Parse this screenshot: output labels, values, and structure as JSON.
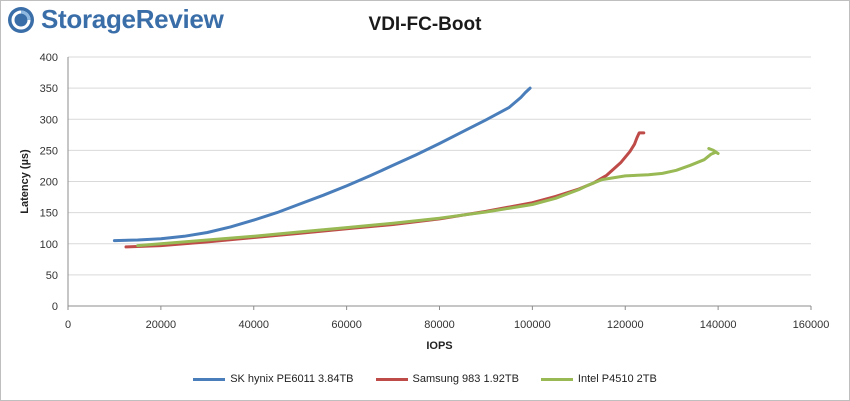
{
  "brand": {
    "name": "StorageReview",
    "color": "#3a6ea8"
  },
  "chart_data": {
    "type": "line",
    "title": "VDI-FC-Boot",
    "xlabel": "IOPS",
    "ylabel": "Latency (µs)",
    "xlim": [
      0,
      160000
    ],
    "ylim": [
      0,
      400
    ],
    "xticks": [
      0,
      20000,
      40000,
      60000,
      80000,
      100000,
      120000,
      140000,
      160000
    ],
    "yticks": [
      0,
      50,
      100,
      150,
      200,
      250,
      300,
      350,
      400
    ],
    "grid": "horizontal",
    "legend": "bottom",
    "series": [
      {
        "name": "SK hynix PE6011 3.84TB",
        "color": "#4a7ebb",
        "points": [
          [
            10000,
            105
          ],
          [
            15000,
            106
          ],
          [
            20000,
            108
          ],
          [
            25000,
            112
          ],
          [
            30000,
            118
          ],
          [
            35000,
            127
          ],
          [
            40000,
            138
          ],
          [
            45000,
            150
          ],
          [
            50000,
            164
          ],
          [
            55000,
            178
          ],
          [
            60000,
            193
          ],
          [
            65000,
            209
          ],
          [
            70000,
            226
          ],
          [
            75000,
            243
          ],
          [
            80000,
            261
          ],
          [
            85000,
            280
          ],
          [
            90000,
            299
          ],
          [
            95000,
            319
          ],
          [
            97500,
            335
          ],
          [
            98500,
            343
          ],
          [
            99500,
            350
          ]
        ]
      },
      {
        "name": "Samsung 983 1.92TB",
        "color": "#be4b48",
        "points": [
          [
            12500,
            95
          ],
          [
            20000,
            97
          ],
          [
            30000,
            103
          ],
          [
            40000,
            110
          ],
          [
            50000,
            117
          ],
          [
            60000,
            124
          ],
          [
            70000,
            131
          ],
          [
            80000,
            140
          ],
          [
            90000,
            152
          ],
          [
            100000,
            166
          ],
          [
            105000,
            176
          ],
          [
            110000,
            188
          ],
          [
            113000,
            197
          ],
          [
            116000,
            210
          ],
          [
            119000,
            230
          ],
          [
            121000,
            248
          ],
          [
            122000,
            260
          ],
          [
            122500,
            270
          ],
          [
            123000,
            278
          ],
          [
            124000,
            278
          ]
        ]
      },
      {
        "name": "Intel P4510 2TB",
        "color": "#98b954",
        "points": [
          [
            15000,
            97
          ],
          [
            20000,
            100
          ],
          [
            30000,
            106
          ],
          [
            40000,
            112
          ],
          [
            50000,
            119
          ],
          [
            60000,
            126
          ],
          [
            70000,
            133
          ],
          [
            80000,
            141
          ],
          [
            90000,
            151
          ],
          [
            100000,
            163
          ],
          [
            105000,
            173
          ],
          [
            110000,
            187
          ],
          [
            112000,
            194
          ],
          [
            115000,
            203
          ],
          [
            120000,
            209
          ],
          [
            125000,
            211
          ],
          [
            128000,
            213
          ],
          [
            131000,
            218
          ],
          [
            134000,
            226
          ],
          [
            137000,
            235
          ],
          [
            138500,
            244
          ],
          [
            139500,
            247
          ],
          [
            140000,
            245
          ],
          [
            139000,
            250
          ],
          [
            138000,
            253
          ]
        ]
      }
    ]
  }
}
